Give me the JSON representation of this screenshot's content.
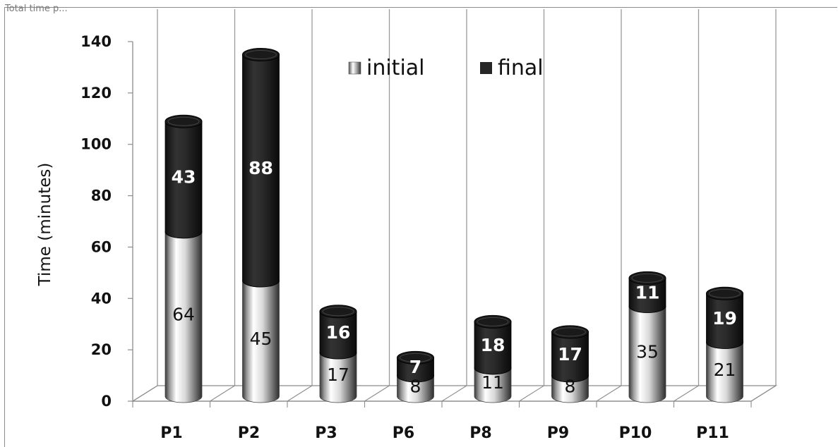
{
  "corner_text": "Total time p...",
  "chart_data": {
    "type": "bar",
    "stacked": true,
    "style": "3d-cylinder",
    "categories": [
      "P1",
      "P2",
      "P3",
      "P6",
      "P8",
      "P9",
      "P10",
      "P11"
    ],
    "series": [
      {
        "name": "initial",
        "values": [
          64,
          45,
          17,
          8,
          11,
          8,
          35,
          21
        ],
        "color": "#a8a8a8"
      },
      {
        "name": "final",
        "values": [
          43,
          88,
          16,
          7,
          18,
          17,
          11,
          19
        ],
        "color": "#262626"
      }
    ],
    "ylabel": "Time (minutes)",
    "xlabel": "",
    "ylim": [
      0,
      140
    ],
    "yticks": [
      0,
      20,
      40,
      60,
      80,
      100,
      120,
      140
    ],
    "grid": "vertical",
    "legend": "top-center"
  }
}
